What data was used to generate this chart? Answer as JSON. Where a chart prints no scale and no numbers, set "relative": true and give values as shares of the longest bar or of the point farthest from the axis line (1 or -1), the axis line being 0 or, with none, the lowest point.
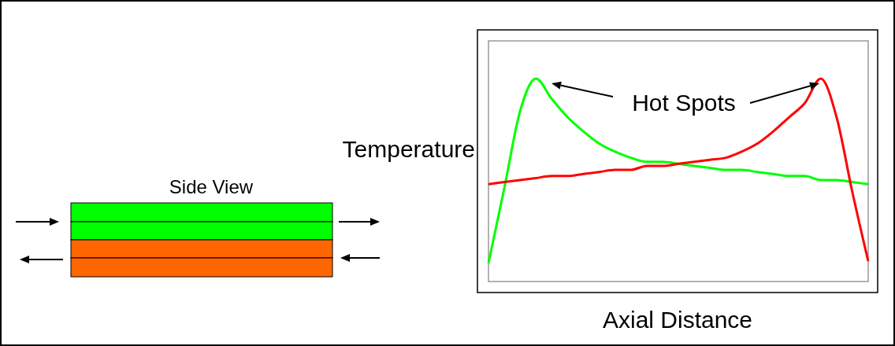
{
  "chart_data": {
    "type": "line",
    "relative": true,
    "ylabel": "Temperature",
    "xlabel": "Axial Distance",
    "annotations": [
      "Hot Spots",
      "Side View"
    ],
    "categories": [
      null,
      null,
      null,
      null,
      null,
      null,
      null,
      null,
      null,
      null,
      null,
      null,
      null,
      null,
      null,
      null,
      null,
      null,
      null,
      null,
      null,
      null,
      null,
      null,
      null
    ],
    "series": [
      {
        "color": "#00ff00",
        "values": [
          0.09,
          0.46,
          0.84,
          1,
          0.9,
          0.81,
          0.74,
          0.68,
          0.64,
          0.61,
          0.59,
          0.59,
          0.58,
          0.57,
          0.56,
          0.55,
          0.55,
          0.54,
          0.53,
          0.52,
          0.52,
          0.5,
          0.5,
          0.49,
          0.48
        ]
      },
      {
        "color": "#ff0000",
        "values": [
          0.48,
          0.49,
          0.5,
          0.51,
          0.52,
          0.52,
          0.53,
          0.54,
          0.55,
          0.55,
          0.57,
          0.57,
          0.58,
          0.59,
          0.6,
          0.61,
          0.64,
          0.68,
          0.74,
          0.81,
          0.88,
          1,
          0.81,
          0.44,
          0.1
        ]
      }
    ],
    "marker": "none"
  }
}
